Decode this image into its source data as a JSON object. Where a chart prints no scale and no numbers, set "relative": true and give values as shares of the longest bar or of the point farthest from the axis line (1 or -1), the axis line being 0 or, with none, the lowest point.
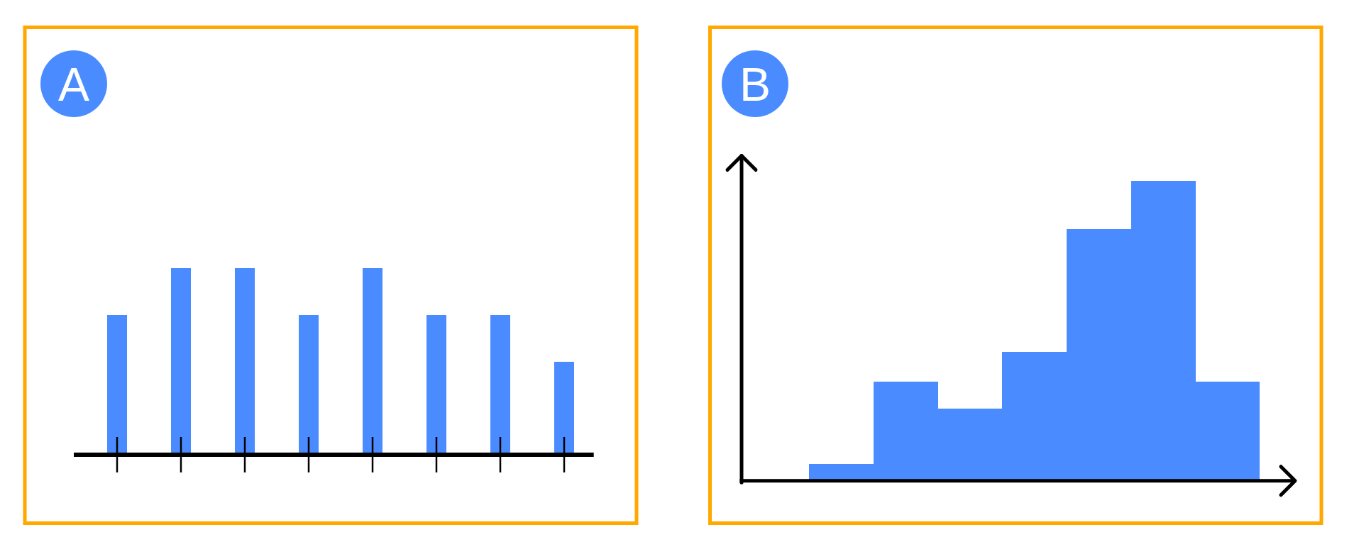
{
  "chart_data": [
    {
      "type": "bar",
      "title": "A",
      "categories": [
        null,
        null,
        null,
        null,
        null,
        null,
        null,
        null
      ],
      "values": [
        0.75,
        1,
        1,
        0.75,
        1,
        0.75,
        0.75,
        0.5
      ],
      "color": "#4a8cff",
      "relative": true
    },
    {
      "type": "bar",
      "title": "B",
      "categories": [
        null,
        null,
        null,
        null,
        null,
        null,
        null
      ],
      "values": [
        0.055,
        0.33,
        0.24,
        0.43,
        0.84,
        1,
        0.33
      ],
      "color": "#4a8cff",
      "relative": true
    }
  ]
}
